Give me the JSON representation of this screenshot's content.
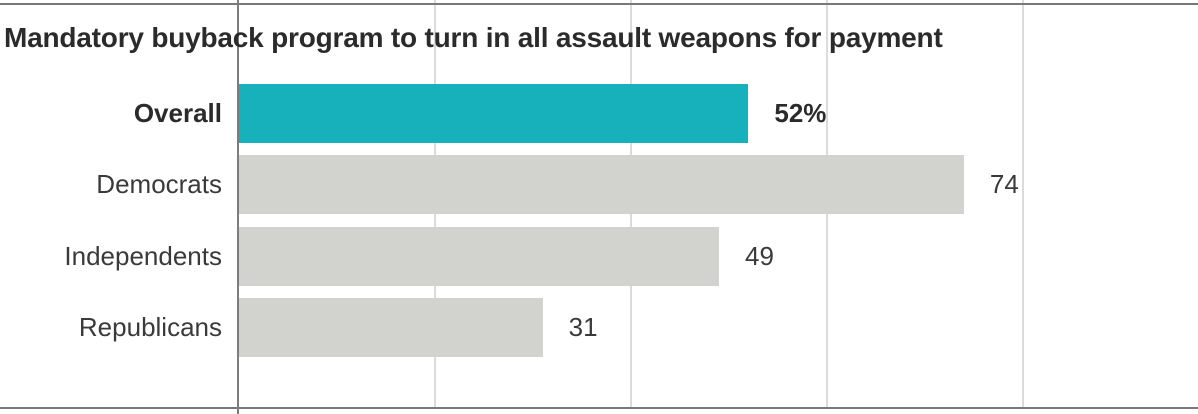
{
  "title": "Mandatory buyback program to turn in all assault weapons for payment",
  "chart_data": {
    "type": "bar",
    "orientation": "horizontal",
    "title": "Mandatory buyback program to turn in all assault weapons for payment",
    "categories": [
      "Overall",
      "Democrats",
      "Independents",
      "Republicans"
    ],
    "values": [
      52,
      74,
      49,
      31
    ],
    "value_labels": [
      "52%",
      "74",
      "49",
      "31"
    ],
    "emphasized": [
      true,
      false,
      false,
      false
    ],
    "xlabel": "",
    "ylabel": "",
    "xlim": [
      0,
      98
    ],
    "gridlines": [
      20,
      40,
      60,
      80
    ],
    "grid": true,
    "legend": "none",
    "colors": {
      "highlight_bar": "#17b1bb",
      "bar": "#d2d2cf",
      "gridline": "#dbdbd9",
      "axis_line": "#7b7c7e",
      "rule": "#77787b",
      "title_text": "#2b2b2b",
      "label_text": "#3a3a3a"
    }
  }
}
